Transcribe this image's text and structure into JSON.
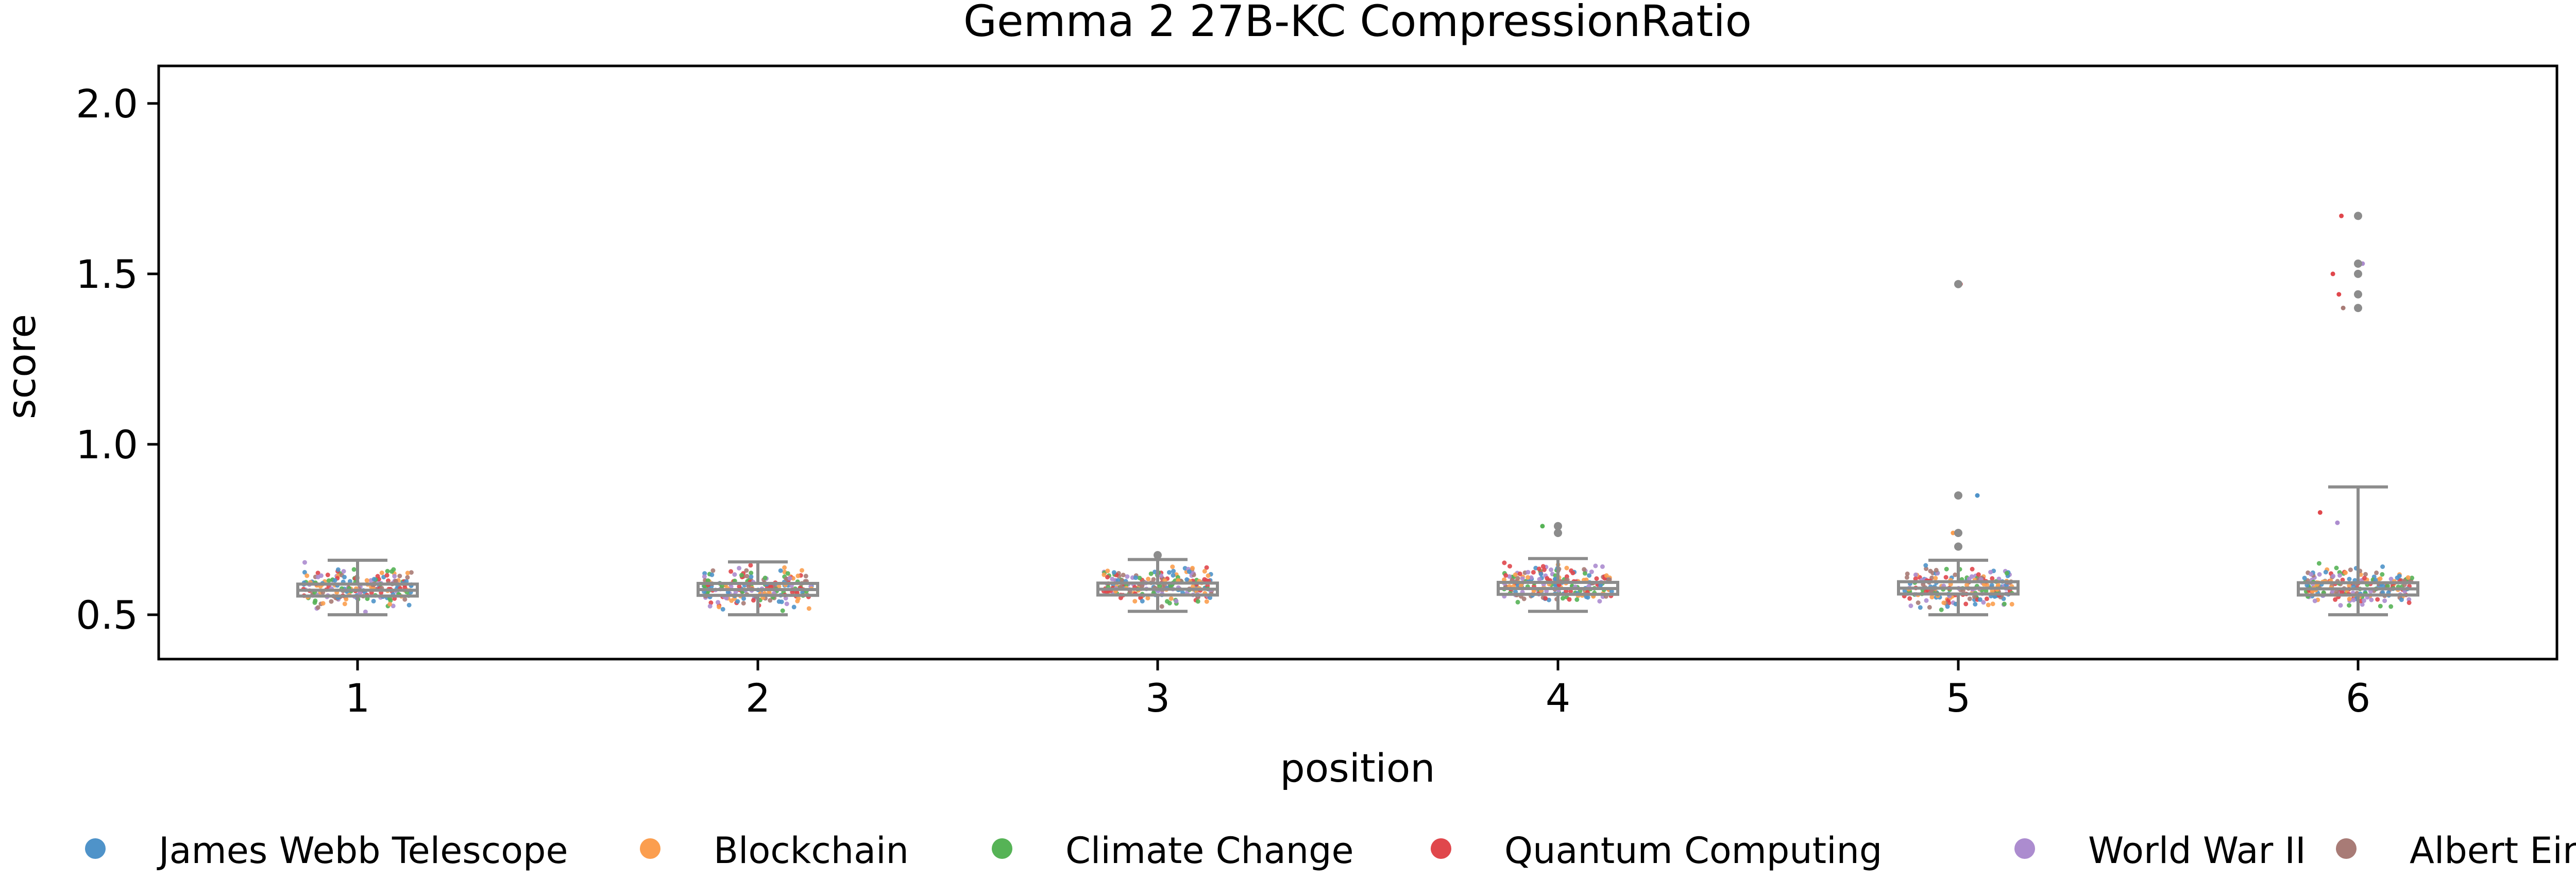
{
  "chart_data": {
    "type": "box-strip",
    "title": "Gemma 2 27B-KC CompressionRatio",
    "xlabel": "position",
    "ylabel": "score",
    "categories": [
      "1",
      "2",
      "3",
      "4",
      "5",
      "6"
    ],
    "ylim": [
      0.37,
      2.11
    ],
    "yticks": [
      0.5,
      1.0,
      1.5,
      2.0
    ],
    "ytick_labels": [
      "0.5",
      "1.0",
      "1.5",
      "2.0"
    ],
    "legend_position": "bottom",
    "series": [
      {
        "name": "James Webb Telescope",
        "color": "#4f93c9"
      },
      {
        "name": "Blockchain",
        "color": "#fb9e4f"
      },
      {
        "name": "Climate Change",
        "color": "#56b356"
      },
      {
        "name": "Quantum Computing",
        "color": "#e0474c"
      },
      {
        "name": "World War II",
        "color": "#ac8ccf"
      },
      {
        "name": "Albert Einstein",
        "color": "#a87b76"
      }
    ],
    "boxes": [
      {
        "position": "1",
        "q1": 0.555,
        "median": 0.572,
        "q3": 0.59,
        "whisker_low": 0.5,
        "whisker_high": 0.66,
        "outliers": []
      },
      {
        "position": "2",
        "q1": 0.557,
        "median": 0.574,
        "q3": 0.592,
        "whisker_low": 0.5,
        "whisker_high": 0.655,
        "outliers": []
      },
      {
        "position": "3",
        "q1": 0.558,
        "median": 0.575,
        "q3": 0.593,
        "whisker_low": 0.51,
        "whisker_high": 0.662,
        "outliers": [
          0.675
        ]
      },
      {
        "position": "4",
        "q1": 0.56,
        "median": 0.577,
        "q3": 0.595,
        "whisker_low": 0.51,
        "whisker_high": 0.665,
        "outliers": [
          0.74,
          0.76
        ]
      },
      {
        "position": "5",
        "q1": 0.561,
        "median": 0.578,
        "q3": 0.597,
        "whisker_low": 0.5,
        "whisker_high": 0.66,
        "outliers": [
          0.7,
          0.74,
          0.85,
          1.47
        ]
      },
      {
        "position": "6",
        "q1": 0.558,
        "median": 0.576,
        "q3": 0.594,
        "whisker_low": 0.5,
        "whisker_high": 0.875,
        "outliers": [
          1.4,
          1.44,
          1.5,
          1.53,
          1.67
        ]
      }
    ],
    "points_per_position": 200,
    "colored_extremes": [
      {
        "position": "4",
        "value": 0.76,
        "series": 2
      },
      {
        "position": "5",
        "value": 1.47,
        "series": 3
      },
      {
        "position": "5",
        "value": 0.85,
        "series": 0
      },
      {
        "position": "5",
        "value": 0.74,
        "series": 1
      },
      {
        "position": "6",
        "value": 1.67,
        "series": 3
      },
      {
        "position": "6",
        "value": 1.53,
        "series": 4
      },
      {
        "position": "6",
        "value": 1.5,
        "series": 3
      },
      {
        "position": "6",
        "value": 1.44,
        "series": 3
      },
      {
        "position": "6",
        "value": 1.4,
        "series": 5
      },
      {
        "position": "6",
        "value": 0.8,
        "series": 3
      },
      {
        "position": "6",
        "value": 0.77,
        "series": 4
      }
    ]
  }
}
